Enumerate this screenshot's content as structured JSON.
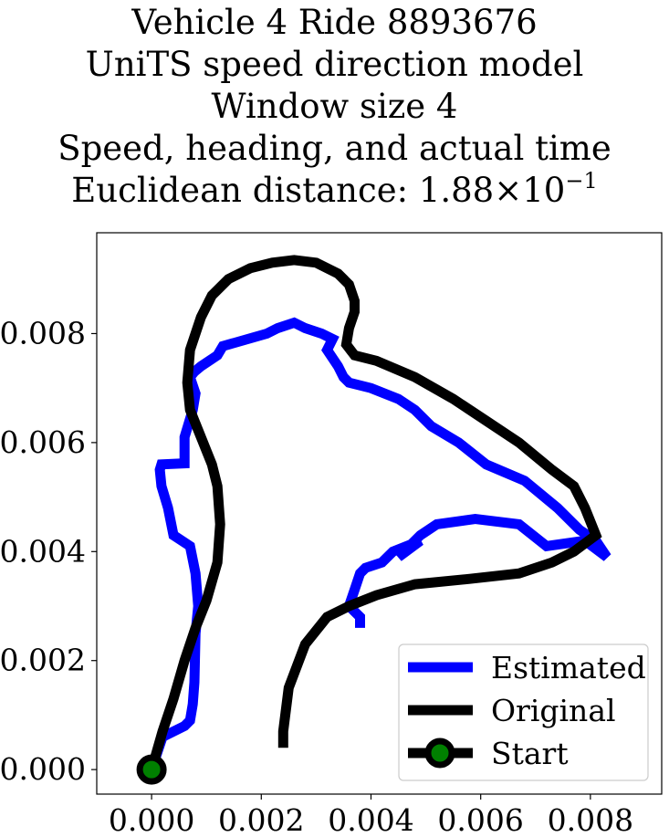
{
  "chart_data": {
    "type": "line",
    "title_lines": [
      "Vehicle 4 Ride 8893676",
      "UniTS speed direction model",
      "Window size 4",
      "Speed, heading, and actual time"
    ],
    "distance_label": "Euclidean distance: ",
    "distance_mantissa": "1.88",
    "distance_times": "×",
    "distance_base": "10",
    "distance_exponent": "−1",
    "xlabel": "",
    "ylabel": "",
    "xlim": [
      -0.001,
      0.0093
    ],
    "ylim": [
      -0.00045,
      0.00985
    ],
    "x_ticks": [
      0.0,
      0.002,
      0.004,
      0.006,
      0.008
    ],
    "x_tick_labels": [
      "0.000",
      "0.002",
      "0.004",
      "0.006",
      "0.008"
    ],
    "y_ticks": [
      0.0,
      0.002,
      0.004,
      0.006,
      0.008
    ],
    "y_tick_labels": [
      "0.000",
      "0.002",
      "0.004",
      "0.006",
      "0.008"
    ],
    "grid": false,
    "legend_position": "lower-right",
    "series": [
      {
        "name": "Estimated",
        "color": "#0000ff",
        "x": [
          0.0,
          0.0002,
          0.0006,
          0.0007,
          0.00075,
          0.00078,
          0.0008,
          0.00085,
          0.0008,
          0.0007,
          0.0004,
          0.0003,
          0.00018,
          0.00015,
          0.00018,
          0.0006,
          0.0006,
          0.00075,
          0.0008,
          0.0007,
          0.00078,
          0.0009,
          0.0012,
          0.0013,
          0.0021,
          0.0023,
          0.0026,
          0.0028,
          0.0031,
          0.0033,
          0.0032,
          0.0034,
          0.0035,
          0.0036,
          0.004,
          0.0045,
          0.0048,
          0.0051,
          0.0056,
          0.0061,
          0.0068,
          0.0074,
          0.0078,
          0.0081,
          0.0083,
          0.0079,
          0.0072,
          0.0067,
          0.0059,
          0.0052,
          0.0049,
          0.0045,
          0.0049,
          0.0044,
          0.0042,
          0.0039,
          0.0038,
          0.0037,
          0.0036,
          0.0038,
          0.0038
        ],
        "y": [
          0.0,
          0.0006,
          0.0008,
          0.0009,
          0.0012,
          0.0016,
          0.0025,
          0.003,
          0.0036,
          0.0041,
          0.0043,
          0.0048,
          0.0052,
          0.0055,
          0.0056,
          0.00562,
          0.0061,
          0.0066,
          0.0069,
          0.0072,
          0.0073,
          0.0074,
          0.0076,
          0.00777,
          0.008,
          0.0081,
          0.0082,
          0.0081,
          0.008,
          0.0079,
          0.0077,
          0.0074,
          0.0072,
          0.0071,
          0.007,
          0.0068,
          0.0066,
          0.0063,
          0.006,
          0.0056,
          0.0053,
          0.0048,
          0.0044,
          0.0042,
          0.0039,
          0.0042,
          0.0041,
          0.0045,
          0.0046,
          0.0045,
          0.0043,
          0.0039,
          0.0042,
          0.004,
          0.0038,
          0.0037,
          0.0036,
          0.0033,
          0.003,
          0.0028,
          0.0026
        ]
      },
      {
        "name": "Original",
        "color": "#000000",
        "x": [
          0.0,
          0.0002,
          0.0004,
          0.0006,
          0.0008,
          0.001,
          0.0012,
          0.00125,
          0.0012,
          0.0011,
          0.0009,
          0.0007,
          0.00065,
          0.0007,
          0.0009,
          0.0011,
          0.0014,
          0.0018,
          0.0022,
          0.0026,
          0.003,
          0.0034,
          0.0036,
          0.0037,
          0.0037,
          0.0036,
          0.00355,
          0.0037,
          0.0041,
          0.0048,
          0.0055,
          0.0061,
          0.0067,
          0.0073,
          0.0077,
          0.0079,
          0.0081,
          0.0077,
          0.0073,
          0.0067,
          0.0058,
          0.0048,
          0.0041,
          0.0036,
          0.0032,
          0.0028,
          0.0025,
          0.0024,
          0.0024
        ],
        "y": [
          0.0,
          0.0007,
          0.0013,
          0.002,
          0.0026,
          0.0031,
          0.0038,
          0.0045,
          0.0052,
          0.0056,
          0.0061,
          0.0066,
          0.0071,
          0.0077,
          0.0083,
          0.0087,
          0.009,
          0.0092,
          0.0093,
          0.00935,
          0.0093,
          0.0091,
          0.0089,
          0.0086,
          0.0084,
          0.0081,
          0.0078,
          0.0076,
          0.0075,
          0.0072,
          0.0068,
          0.0064,
          0.006,
          0.0055,
          0.0052,
          0.0048,
          0.0043,
          0.004,
          0.0038,
          0.0036,
          0.0035,
          0.0034,
          0.0032,
          0.003,
          0.0028,
          0.0023,
          0.0015,
          0.0007,
          0.0004
        ]
      }
    ],
    "start": {
      "name": "Start",
      "x": 0.0,
      "y": 0.0,
      "color": "#008000",
      "edge_color": "#000000"
    }
  }
}
